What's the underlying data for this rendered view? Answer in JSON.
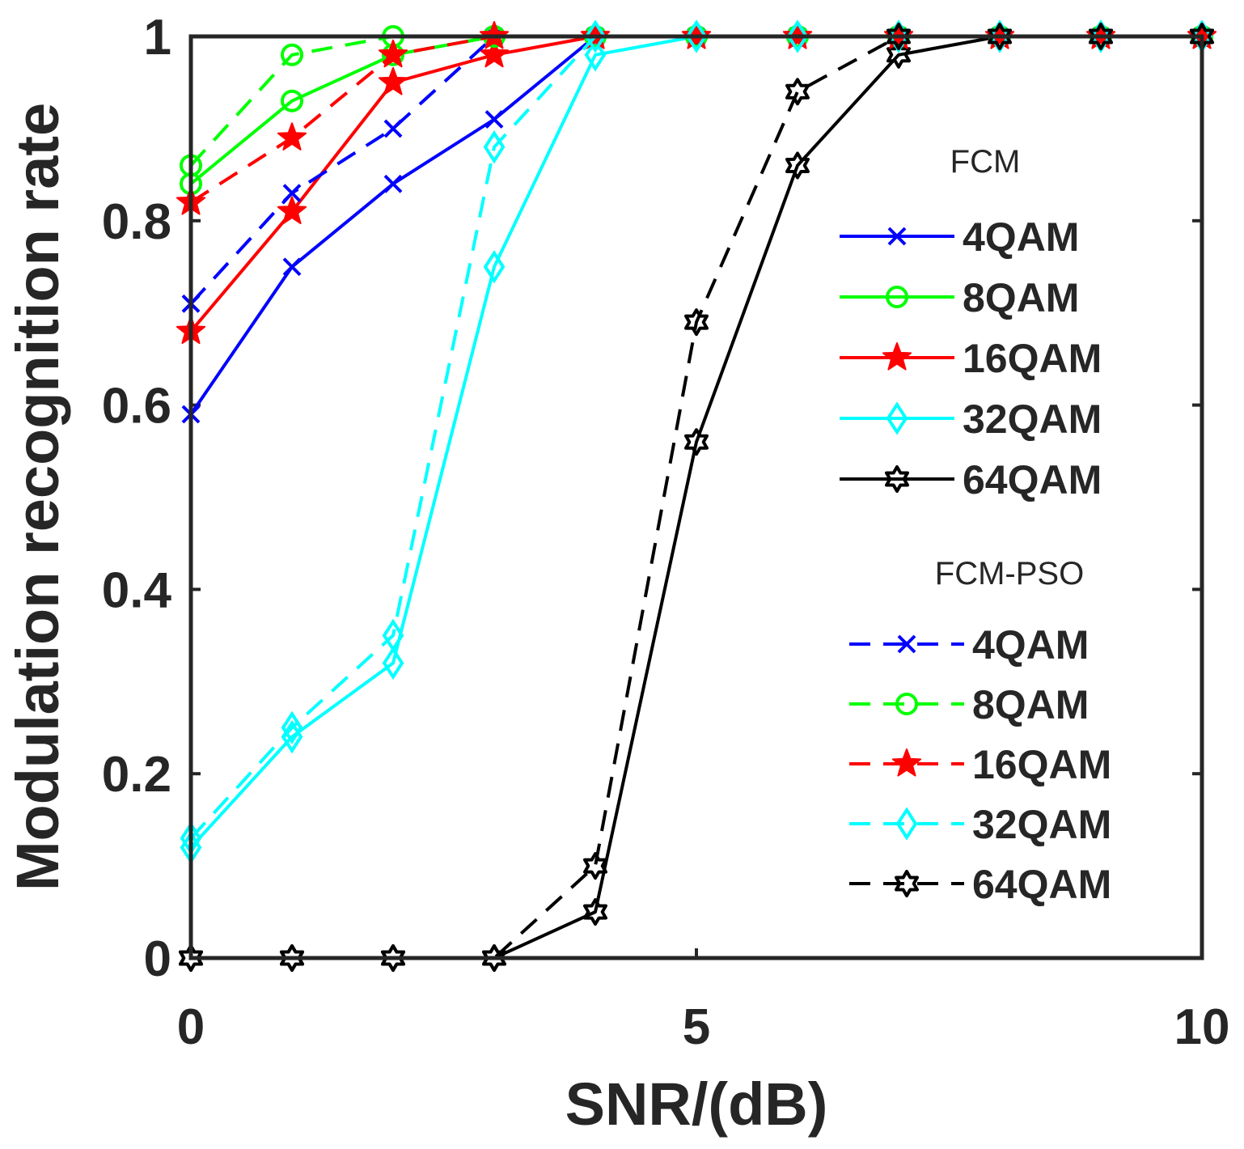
{
  "chart_data": {
    "type": "line",
    "title": "",
    "xlabel": "SNR/(dB)",
    "ylabel": "Modulation recognition rate",
    "xlim": [
      0,
      10
    ],
    "ylim": [
      0,
      1
    ],
    "x_ticks": [
      0,
      5,
      10
    ],
    "x_tick_labels": [
      "0",
      "5",
      "10"
    ],
    "y_ticks": [
      0,
      0.2,
      0.4,
      0.6,
      0.8,
      1
    ],
    "y_tick_labels": [
      "0",
      "0.2",
      "0.4",
      "0.6",
      "0.8",
      "1"
    ],
    "grid": false,
    "legend_position": "right",
    "x": [
      0,
      1,
      2,
      3,
      4,
      5,
      6,
      7,
      8,
      9,
      10
    ],
    "groups": [
      {
        "heading": "FCM",
        "line_style": "solid",
        "series": [
          {
            "name": "4QAM",
            "color": "#0000ff",
            "marker": "x",
            "values": [
              0.59,
              0.75,
              0.84,
              0.91,
              1.0,
              1.0,
              1.0,
              1.0,
              1.0,
              1.0,
              1.0
            ]
          },
          {
            "name": "8QAM",
            "color": "#00ff00",
            "marker": "circle",
            "values": [
              0.84,
              0.93,
              0.98,
              1.0,
              1.0,
              1.0,
              1.0,
              1.0,
              1.0,
              1.0,
              1.0
            ]
          },
          {
            "name": "16QAM",
            "color": "#ff0000",
            "marker": "star",
            "values": [
              0.68,
              0.81,
              0.95,
              0.98,
              1.0,
              1.0,
              1.0,
              1.0,
              1.0,
              1.0,
              1.0
            ]
          },
          {
            "name": "32QAM",
            "color": "#00ffff",
            "marker": "diamond",
            "values": [
              0.12,
              0.24,
              0.32,
              0.75,
              0.98,
              1.0,
              1.0,
              1.0,
              1.0,
              1.0,
              1.0
            ]
          },
          {
            "name": "64QAM",
            "color": "#000000",
            "marker": "hexagram",
            "values": [
              0.0,
              0.0,
              0.0,
              0.0,
              0.05,
              0.56,
              0.86,
              0.98,
              1.0,
              1.0,
              1.0
            ]
          }
        ]
      },
      {
        "heading": "FCM-PSO",
        "line_style": "dashed",
        "series": [
          {
            "name": "4QAM",
            "color": "#0000ff",
            "marker": "x",
            "values": [
              0.71,
              0.83,
              0.9,
              1.0,
              1.0,
              1.0,
              1.0,
              1.0,
              1.0,
              1.0,
              1.0
            ]
          },
          {
            "name": "8QAM",
            "color": "#00ff00",
            "marker": "circle",
            "values": [
              0.86,
              0.98,
              1.0,
              1.0,
              1.0,
              1.0,
              1.0,
              1.0,
              1.0,
              1.0,
              1.0
            ]
          },
          {
            "name": "16QAM",
            "color": "#ff0000",
            "marker": "star",
            "values": [
              0.82,
              0.89,
              0.98,
              1.0,
              1.0,
              1.0,
              1.0,
              1.0,
              1.0,
              1.0,
              1.0
            ]
          },
          {
            "name": "32QAM",
            "color": "#00ffff",
            "marker": "diamond",
            "values": [
              0.13,
              0.25,
              0.35,
              0.88,
              1.0,
              1.0,
              1.0,
              1.0,
              1.0,
              1.0,
              1.0
            ]
          },
          {
            "name": "64QAM",
            "color": "#000000",
            "marker": "hexagram",
            "values": [
              0.0,
              0.0,
              0.0,
              0.0,
              0.1,
              0.69,
              0.94,
              1.0,
              1.0,
              1.0,
              1.0
            ]
          }
        ]
      }
    ]
  }
}
